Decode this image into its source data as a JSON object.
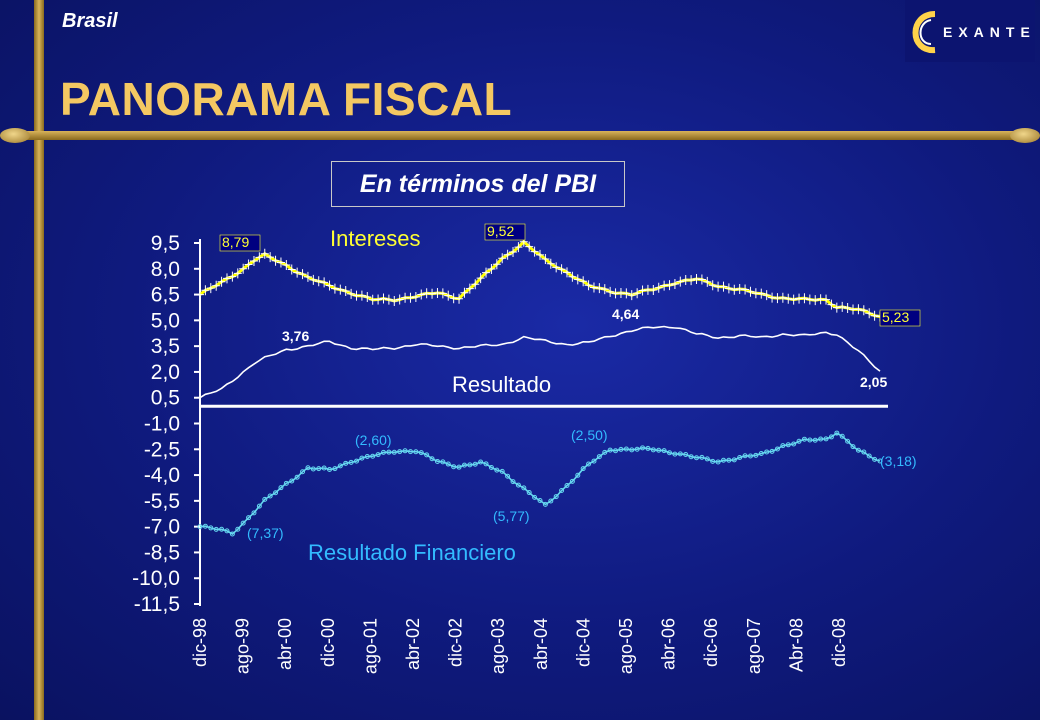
{
  "header": {
    "country": "Brasil",
    "title": "PANORAMA FISCAL",
    "logo_text": "EXANTE"
  },
  "colors": {
    "intereses": "#ffff00",
    "resultado": "#ffffff",
    "resultado_financiero": "#66d8f0",
    "title": "#f4c862",
    "label_yellow": "#ffff33",
    "label_cyan": "#33bbff"
  },
  "chart_data": {
    "type": "line",
    "title": "En términos del PBI",
    "y_ticks": [
      9.5,
      8.0,
      6.5,
      5.0,
      3.5,
      2.0,
      0.5,
      -1.0,
      -2.5,
      -4.0,
      -5.5,
      -7.0,
      -8.5,
      -10.0,
      -11.5
    ],
    "y_tick_labels": [
      "9,5",
      "8,0",
      "6,5",
      "5,0",
      "3,5",
      "2,0",
      "0,5",
      "-1,0",
      "-2,5",
      "-4,0",
      "-5,5",
      "-7,0",
      "-8,5",
      "-10,0",
      "-11,5"
    ],
    "ylim": [
      -11.5,
      9.5
    ],
    "x_tick_labels": [
      "dic-98",
      "ago-99",
      "abr-00",
      "dic-00",
      "ago-01",
      "abr-02",
      "dic-02",
      "ago-03",
      "abr-04",
      "dic-04",
      "ago-05",
      "abr-06",
      "dic-06",
      "ago-07",
      "Abr-08",
      "dic-08"
    ],
    "x_tick_months": [
      0,
      8,
      16,
      24,
      32,
      40,
      48,
      56,
      64,
      72,
      80,
      88,
      96,
      104,
      112,
      120
    ],
    "zero_line": 0,
    "series": [
      {
        "name": "Intereses",
        "anchors": [
          [
            0,
            6.5
          ],
          [
            4,
            7.2
          ],
          [
            8,
            8.0
          ],
          [
            10,
            8.5
          ],
          [
            12,
            8.79
          ],
          [
            16,
            8.2
          ],
          [
            20,
            7.5
          ],
          [
            24,
            7.0
          ],
          [
            28,
            6.6
          ],
          [
            32,
            6.2
          ],
          [
            36,
            6.2
          ],
          [
            40,
            6.4
          ],
          [
            44,
            6.6
          ],
          [
            48,
            6.3
          ],
          [
            52,
            7.4
          ],
          [
            56,
            8.6
          ],
          [
            60,
            9.52
          ],
          [
            64,
            8.5
          ],
          [
            68,
            7.8
          ],
          [
            72,
            7.0
          ],
          [
            76,
            6.7
          ],
          [
            80,
            6.5
          ],
          [
            84,
            6.8
          ],
          [
            88,
            7.2
          ],
          [
            92,
            7.4
          ],
          [
            96,
            7.0
          ],
          [
            100,
            6.8
          ],
          [
            104,
            6.5
          ],
          [
            108,
            6.3
          ],
          [
            112,
            6.2
          ],
          [
            116,
            6.2
          ],
          [
            118,
            5.8
          ],
          [
            122,
            5.6
          ],
          [
            126,
            5.23
          ]
        ],
        "annotations": [
          {
            "label": "8,79",
            "month": 12,
            "value": 8.79
          },
          {
            "label": "9,52",
            "month": 60,
            "value": 9.52
          },
          {
            "label": "5,23",
            "month": 126,
            "value": 5.23
          }
        ]
      },
      {
        "name": "Resultado",
        "anchors": [
          [
            0,
            0.5
          ],
          [
            4,
            1.0
          ],
          [
            8,
            2.0
          ],
          [
            10,
            2.5
          ],
          [
            12,
            2.8
          ],
          [
            16,
            3.3
          ],
          [
            20,
            3.5
          ],
          [
            24,
            3.76
          ],
          [
            28,
            3.4
          ],
          [
            32,
            3.3
          ],
          [
            36,
            3.4
          ],
          [
            40,
            3.6
          ],
          [
            44,
            3.5
          ],
          [
            48,
            3.4
          ],
          [
            52,
            3.5
          ],
          [
            56,
            3.6
          ],
          [
            60,
            4.0
          ],
          [
            64,
            3.8
          ],
          [
            68,
            3.6
          ],
          [
            72,
            3.7
          ],
          [
            76,
            4.1
          ],
          [
            80,
            4.4
          ],
          [
            84,
            4.6
          ],
          [
            88,
            4.64
          ],
          [
            92,
            4.2
          ],
          [
            96,
            4.0
          ],
          [
            100,
            4.1
          ],
          [
            104,
            4.0
          ],
          [
            108,
            4.2
          ],
          [
            112,
            4.1
          ],
          [
            116,
            4.3
          ],
          [
            118,
            4.2
          ],
          [
            122,
            3.2
          ],
          [
            126,
            2.05
          ]
        ],
        "annotations": [
          {
            "label": "3,76",
            "month": 24,
            "value": 3.76
          },
          {
            "label": "4,64",
            "month": 88,
            "value": 4.64
          },
          {
            "label": "2,05",
            "month": 126,
            "value": 2.05
          }
        ]
      },
      {
        "name": "Resultado Financiero",
        "anchors": [
          [
            0,
            -7.0
          ],
          [
            4,
            -7.2
          ],
          [
            6,
            -7.37
          ],
          [
            8,
            -6.8
          ],
          [
            12,
            -5.5
          ],
          [
            16,
            -4.5
          ],
          [
            20,
            -3.6
          ],
          [
            24,
            -3.7
          ],
          [
            28,
            -3.2
          ],
          [
            32,
            -2.9
          ],
          [
            36,
            -2.6
          ],
          [
            40,
            -2.6
          ],
          [
            44,
            -3.2
          ],
          [
            48,
            -3.5
          ],
          [
            52,
            -3.3
          ],
          [
            56,
            -3.8
          ],
          [
            60,
            -4.8
          ],
          [
            64,
            -5.77
          ],
          [
            68,
            -4.6
          ],
          [
            72,
            -3.4
          ],
          [
            76,
            -2.5
          ],
          [
            80,
            -2.5
          ],
          [
            84,
            -2.5
          ],
          [
            88,
            -2.7
          ],
          [
            92,
            -3.0
          ],
          [
            96,
            -3.2
          ],
          [
            100,
            -3.0
          ],
          [
            104,
            -2.8
          ],
          [
            108,
            -2.3
          ],
          [
            112,
            -2.0
          ],
          [
            116,
            -1.9
          ],
          [
            118,
            -1.5
          ],
          [
            122,
            -2.6
          ],
          [
            126,
            -3.18
          ]
        ],
        "annotations": [
          {
            "label": "(7,37)",
            "month": 6,
            "value": -7.37
          },
          {
            "label": "(2,60)",
            "month": 40,
            "value": -2.6
          },
          {
            "label": "(5,77)",
            "month": 64,
            "value": -5.77
          },
          {
            "label": "(2,50)",
            "month": 80,
            "value": -2.5
          },
          {
            "label": "(3,18)",
            "month": 126,
            "value": -3.18
          }
        ]
      }
    ]
  }
}
